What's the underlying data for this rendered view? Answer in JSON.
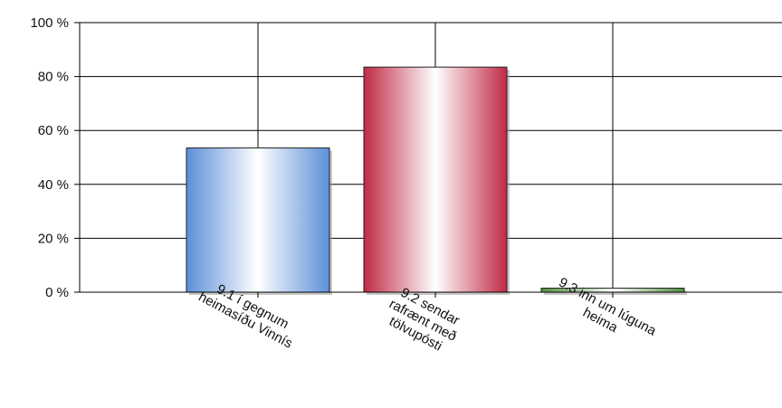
{
  "chart_data": {
    "type": "bar",
    "title": "",
    "xlabel": "",
    "ylabel": "",
    "ylim": [
      0,
      100
    ],
    "y_ticks": [
      {
        "value": 0,
        "label": "0 %"
      },
      {
        "value": 20,
        "label": "20 %"
      },
      {
        "value": 40,
        "label": "40 %"
      },
      {
        "value": 60,
        "label": "60 %"
      },
      {
        "value": 80,
        "label": "80 %"
      },
      {
        "value": 100,
        "label": "100 %"
      }
    ],
    "categories": [
      {
        "lines": [
          "9.1 í gegnum",
          "heimasíðu Vinnís"
        ]
      },
      {
        "lines": [
          "9.2 sendar",
          "rafrænt með",
          "tölvupósti"
        ]
      },
      {
        "lines": [
          "9.3 inn um lúguna",
          "heima"
        ]
      }
    ],
    "values": [
      53.5,
      83.5,
      1.5
    ],
    "colors": [
      "#5b8fd9",
      "#c02a45",
      "#4f8f3f"
    ],
    "grid": true,
    "legend": "none"
  }
}
